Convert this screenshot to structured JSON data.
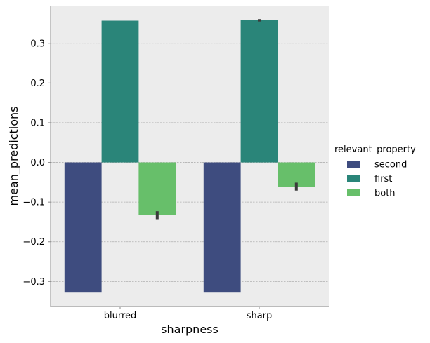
{
  "chart_data": {
    "type": "bar",
    "title": "",
    "xlabel": "sharpness",
    "ylabel": "mean_predictions",
    "categories": [
      "blurred",
      "sharp"
    ],
    "series": [
      {
        "name": "second",
        "values": [
          -0.328,
          -0.328
        ],
        "error": [
          0.0,
          0.0
        ],
        "color": "#3e4c7f"
      },
      {
        "name": "first",
        "values": [
          0.357,
          0.358
        ],
        "error": [
          0.0,
          0.003
        ],
        "color": "#2a8579"
      },
      {
        "name": "both",
        "values": [
          -0.133,
          -0.061
        ],
        "error": [
          0.01,
          0.01
        ],
        "color": "#67bf6a"
      }
    ],
    "ylim": [
      -0.363,
      0.395
    ],
    "yticks": [
      -0.3,
      -0.2,
      -0.1,
      0.0,
      0.1,
      0.2,
      0.3
    ],
    "ytick_labels": [
      "−0.3",
      "−0.2",
      "−0.1",
      "0.0",
      "0.1",
      "0.2",
      "0.3"
    ],
    "grid": "y",
    "background": "#ececec",
    "legend": {
      "title": "relevant_property",
      "placement": "right"
    }
  }
}
